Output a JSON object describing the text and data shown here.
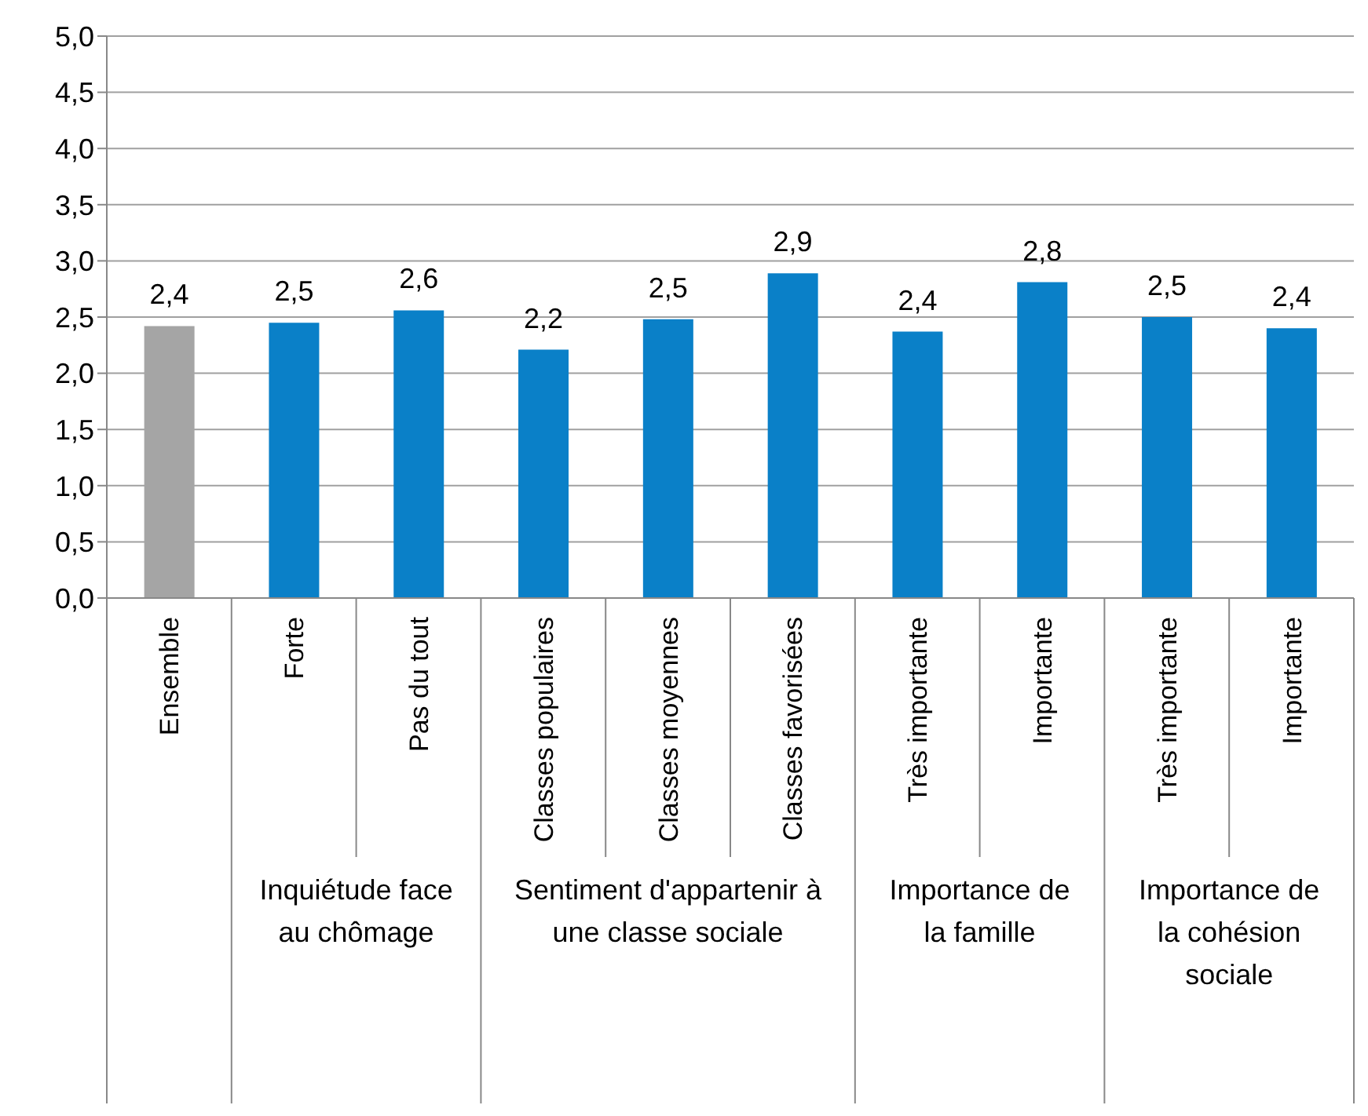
{
  "chart_data": {
    "type": "bar",
    "categories": [
      "Ensemble",
      "Forte",
      "Pas du tout",
      "Classes populaires",
      "Classes moyennes",
      "Classes favorisées",
      "Très importante",
      "Importante",
      "Très importante",
      "Importante"
    ],
    "values": [
      2.42,
      2.45,
      2.56,
      2.21,
      2.48,
      2.89,
      2.37,
      2.81,
      2.5,
      2.4
    ],
    "colors": [
      "#a5a5a5",
      "#0a80c8",
      "#0a80c8",
      "#0a80c8",
      "#0a80c8",
      "#0a80c8",
      "#0a80c8",
      "#0a80c8",
      "#0a80c8",
      "#0a80c8"
    ],
    "value_labels": [
      "2,4",
      "2,5",
      "2,6",
      "2,2",
      "2,5",
      "2,9",
      "2,4",
      "2,8",
      "2,5",
      "2,4"
    ],
    "ylim": [
      0,
      5
    ],
    "yticks": [
      {
        "value": 0,
        "label": "0,0"
      },
      {
        "value": 0.5,
        "label": "0,5"
      },
      {
        "value": 1,
        "label": "1,0"
      },
      {
        "value": 1.5,
        "label": "1,5"
      },
      {
        "value": 2,
        "label": "2,0"
      },
      {
        "value": 2.5,
        "label": "2,5"
      },
      {
        "value": 3,
        "label": "3,0"
      },
      {
        "value": 3.5,
        "label": "3,5"
      },
      {
        "value": 4,
        "label": "4,0"
      },
      {
        "value": 4.5,
        "label": "4,5"
      },
      {
        "value": 5,
        "label": "5,0"
      }
    ],
    "grid": "y",
    "annotations": [
      "Inquiétude face au chômage",
      "Sentiment d'appartenir à une classe sociale",
      "Importance de la famille",
      "Importance de la cohésion sociale"
    ]
  }
}
